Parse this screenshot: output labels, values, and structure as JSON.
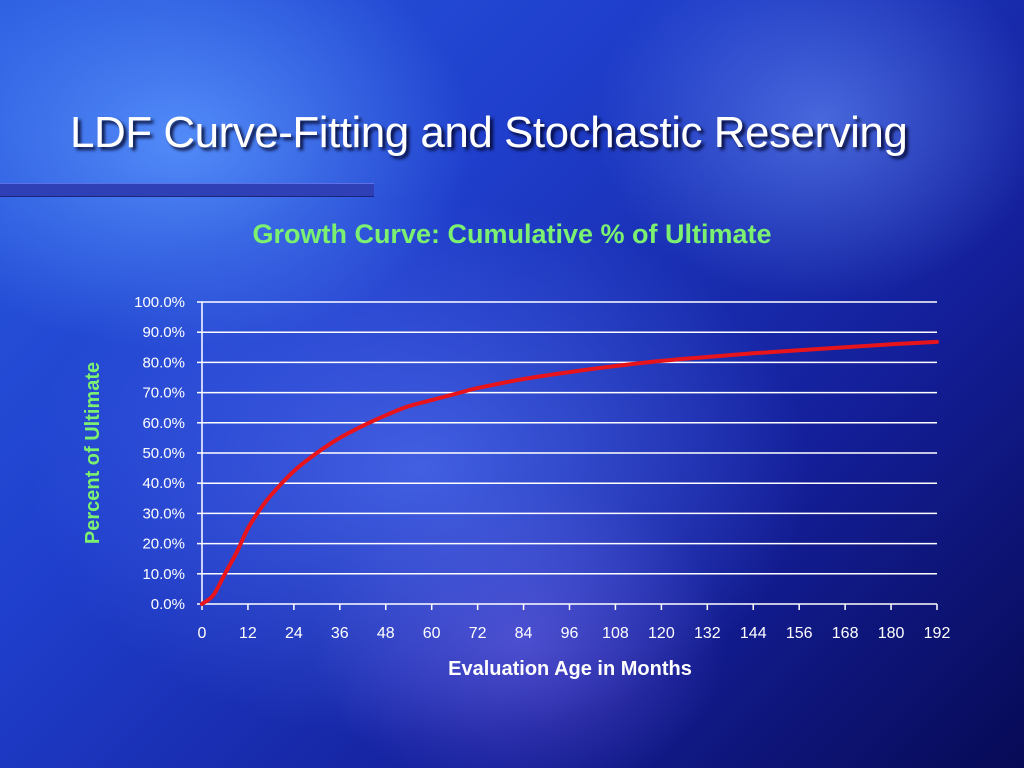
{
  "slide": {
    "title": "LDF Curve-Fitting and Stochastic Reserving"
  },
  "chart_data": {
    "type": "line",
    "title": "Growth Curve:  Cumulative % of Ultimate",
    "xlabel": "Evaluation Age in Months",
    "ylabel": "Percent of Ultimate",
    "xlim": [
      0,
      192
    ],
    "ylim": [
      0,
      100
    ],
    "x_ticks": [
      0,
      12,
      24,
      36,
      48,
      60,
      72,
      84,
      96,
      108,
      120,
      132,
      144,
      156,
      168,
      180,
      192
    ],
    "y_ticks": [
      "0.0%",
      "10.0%",
      "20.0%",
      "30.0%",
      "40.0%",
      "50.0%",
      "60.0%",
      "70.0%",
      "80.0%",
      "90.0%",
      "100.0%"
    ],
    "grid": true,
    "legend": "none",
    "series": [
      {
        "color": "#e8141c",
        "x": [
          0,
          3,
          6,
          9,
          12,
          15,
          18,
          24,
          30,
          36,
          42,
          48,
          54,
          60,
          66,
          72,
          84,
          96,
          108,
          120,
          132,
          144,
          156,
          168,
          180,
          192
        ],
        "y": [
          0.0,
          3.0,
          10.0,
          17.0,
          25.0,
          31.0,
          36.0,
          44.0,
          50.0,
          55.0,
          59.0,
          62.5,
          65.5,
          67.5,
          69.5,
          71.5,
          74.5,
          76.8,
          78.8,
          80.5,
          81.8,
          83.0,
          84.0,
          85.0,
          86.0,
          86.8
        ]
      }
    ],
    "colors": {
      "title_text": "#7cf070",
      "axis_text": "#ffffff",
      "gridlines": "#ffffff"
    }
  }
}
